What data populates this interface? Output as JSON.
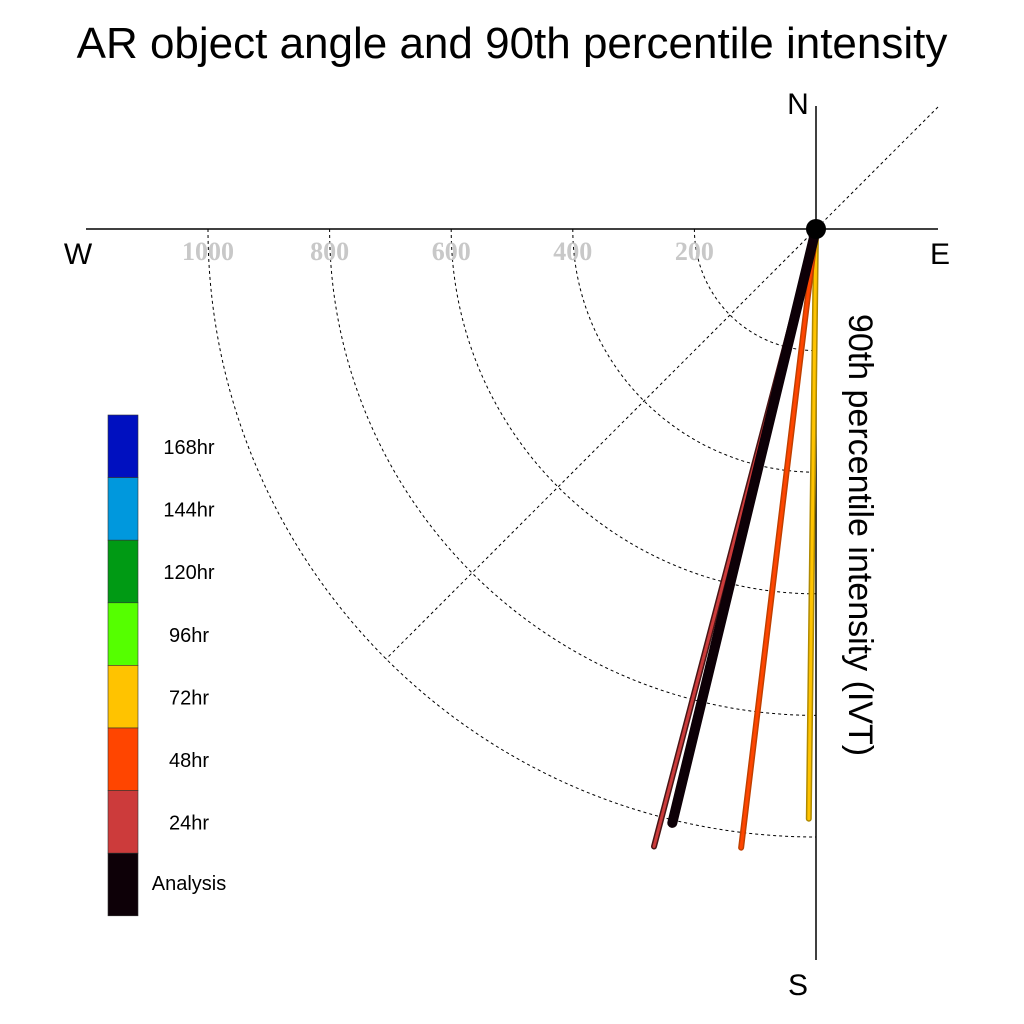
{
  "chart_data": {
    "type": "polar-vector",
    "title": "AR object angle and 90th percentile intensity",
    "ylabel": "90th percentile intensity (IVT)",
    "compass": {
      "north": "N",
      "south": "S",
      "east": "E",
      "west": "W"
    },
    "radial_ticks": [
      "200",
      "400",
      "600",
      "800",
      "1000"
    ],
    "radial_tick_values": [
      200,
      400,
      600,
      800,
      1000
    ],
    "rmax": 1000,
    "grid": true,
    "legend": {
      "placement": "left",
      "entries": [
        {
          "label": "168hr",
          "color": "#0010c0"
        },
        {
          "label": "144hr",
          "color": "#0098dd"
        },
        {
          "label": "120hr",
          "color": "#009a14"
        },
        {
          "label": "96hr",
          "color": "#55ff00"
        },
        {
          "label": "72hr",
          "color": "#ffc300"
        },
        {
          "label": "48hr",
          "color": "#ff4500"
        },
        {
          "label": "24hr",
          "color": "#cc3b3b"
        },
        {
          "label": "Analysis",
          "color": "#0d0007"
        }
      ]
    },
    "series": [
      {
        "name": "72hr",
        "angle_deg": 180.7,
        "value": 970,
        "color": "#ffc300",
        "outline": "#b08a00"
      },
      {
        "name": "48hr",
        "angle_deg": 186.9,
        "value": 1025,
        "color": "#ff4500",
        "outline": "#c04000"
      },
      {
        "name": "24hr",
        "angle_deg": 194.7,
        "value": 1050,
        "color": "#cc3b3b",
        "outline": "#4a1515"
      },
      {
        "name": "Analysis",
        "angle_deg": 193.6,
        "value": 1005,
        "color": "#0d0007",
        "outline": "#000000"
      }
    ]
  }
}
